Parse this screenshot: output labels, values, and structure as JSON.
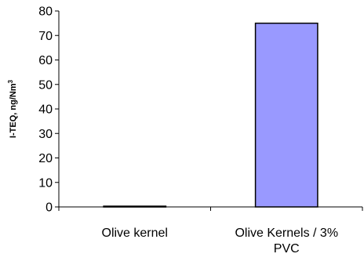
{
  "chart_data": {
    "type": "bar",
    "categories": [
      [
        "Olive kernel"
      ],
      [
        "Olive Kernels / 3%",
        "PVC"
      ]
    ],
    "values": [
      0.3,
      75
    ],
    "bar_colors": [
      "#000000",
      "#9999ff"
    ],
    "ylabel": "I-TEQ, ng/Nm",
    "ylabel_superscript": "3",
    "ylim": [
      0,
      80
    ],
    "yticks": [
      0,
      10,
      20,
      30,
      40,
      50,
      60,
      70,
      80
    ],
    "grid": false
  }
}
